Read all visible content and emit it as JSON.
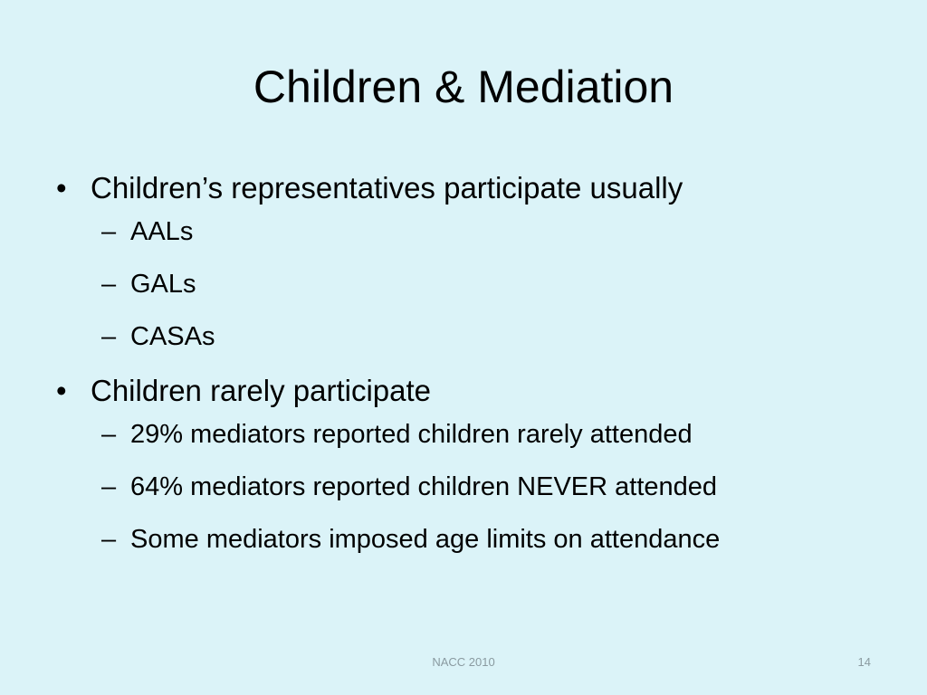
{
  "slide": {
    "title": "Children & Mediation",
    "bullets": [
      {
        "text": "Children’s representatives participate usually",
        "subitems": [
          "AALs",
          "GALs",
          "CASAs"
        ]
      },
      {
        "text": "Children rarely participate",
        "subitems": [
          "29% mediators reported children rarely attended",
          "64% mediators reported children NEVER attended",
          "Some mediators imposed age limits on attendance"
        ]
      }
    ],
    "bullet_glyph": "•",
    "dash_glyph": "–",
    "footer": "NACC 2010",
    "page_number": "14",
    "background_color": "#dbf3f8"
  }
}
